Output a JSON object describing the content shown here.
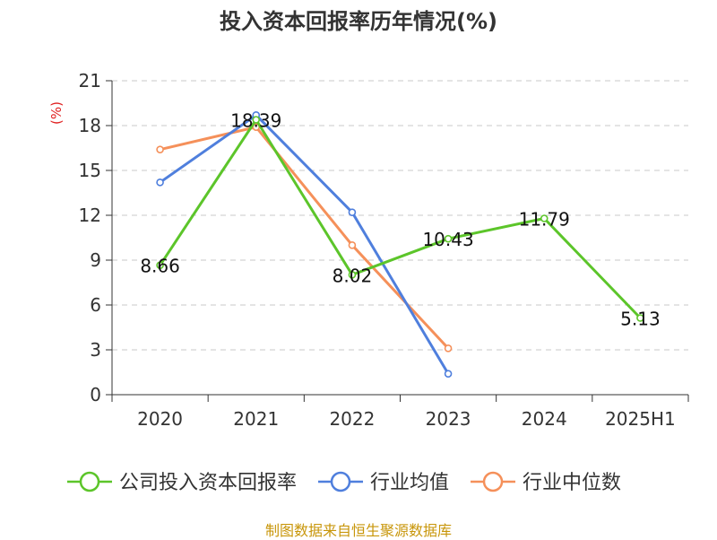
{
  "title": "投入资本回报率历年情况(%)",
  "footer": "制图数据来自恒生聚源数据库",
  "chart_data": {
    "type": "line",
    "title": "投入资本回报率历年情况(%)",
    "ylabel": "(%)",
    "categories": [
      "2020",
      "2021",
      "2022",
      "2023",
      "2024",
      "2025H1"
    ],
    "ylim": [
      0,
      21
    ],
    "yticks": [
      0,
      3,
      6,
      9,
      12,
      15,
      18,
      21
    ],
    "grid": true,
    "legend_position": "bottom",
    "series": [
      {
        "name": "公司投入资本回报率",
        "color": "#5cc52a",
        "values": [
          8.66,
          18.39,
          8.02,
          10.43,
          11.79,
          5.13
        ],
        "labels": [
          "8.66",
          "18.39",
          "8.02",
          "10.43",
          "11.79",
          "5.13"
        ]
      },
      {
        "name": "行业均值",
        "color": "#4f7fdd",
        "values": [
          14.2,
          18.7,
          12.2,
          1.4,
          null,
          null
        ]
      },
      {
        "name": "行业中位数",
        "color": "#f5905a",
        "values": [
          16.4,
          17.9,
          10.0,
          3.1,
          null,
          null
        ]
      }
    ]
  }
}
